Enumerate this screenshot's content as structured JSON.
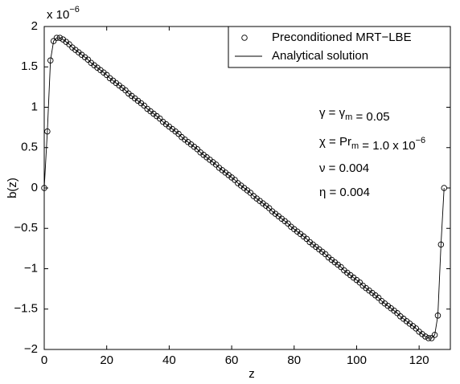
{
  "chart_data": {
    "type": "line",
    "xlabel": "z",
    "ylabel": "b(z)",
    "y_multiplier": [
      {
        "t": "x 10"
      },
      {
        "sup": "−6"
      }
    ],
    "xlim": [
      0,
      130
    ],
    "xticks": [
      0,
      20,
      40,
      60,
      80,
      100,
      120
    ],
    "ylim": [
      -2,
      2
    ],
    "yticks": [
      {
        "value": -2,
        "label": "−2"
      },
      {
        "value": -1.5,
        "label": "−1.5"
      },
      {
        "value": -1,
        "label": "−1"
      },
      {
        "value": -0.5,
        "label": "−0.5"
      },
      0,
      0.5,
      1,
      1.5,
      2
    ],
    "grid": false,
    "legend": "upper right",
    "x": [
      0,
      1,
      2,
      3,
      4,
      5,
      6,
      7,
      8,
      9,
      10,
      11,
      12,
      13,
      14,
      15,
      16,
      17,
      18,
      19,
      20,
      21,
      22,
      23,
      24,
      25,
      26,
      27,
      28,
      29,
      30,
      31,
      32,
      33,
      34,
      35,
      36,
      37,
      38,
      39,
      40,
      41,
      42,
      43,
      44,
      45,
      46,
      47,
      48,
      49,
      50,
      51,
      52,
      53,
      54,
      55,
      56,
      57,
      58,
      59,
      60,
      61,
      62,
      63,
      64,
      65,
      66,
      67,
      68,
      69,
      70,
      71,
      72,
      73,
      74,
      75,
      76,
      77,
      78,
      79,
      80,
      81,
      82,
      83,
      84,
      85,
      86,
      87,
      88,
      89,
      90,
      91,
      92,
      93,
      94,
      95,
      96,
      97,
      98,
      99,
      100,
      101,
      102,
      103,
      104,
      105,
      106,
      107,
      108,
      109,
      110,
      111,
      112,
      113,
      114,
      115,
      116,
      117,
      118,
      119,
      120,
      121,
      122,
      123,
      124,
      125,
      126,
      127,
      128
    ],
    "series": [
      {
        "name": "Preconditioned MRT−LBE",
        "color": "#000000",
        "marker": "circle",
        "values": [
          0,
          0.7,
          1.58,
          1.82,
          1.86,
          1.86,
          1.84,
          1.81,
          1.78,
          1.74,
          1.71,
          1.68,
          1.65,
          1.62,
          1.59,
          1.55,
          1.52,
          1.49,
          1.46,
          1.43,
          1.4,
          1.36,
          1.33,
          1.3,
          1.27,
          1.24,
          1.21,
          1.17,
          1.14,
          1.11,
          1.08,
          1.05,
          1.02,
          0.98,
          0.95,
          0.92,
          0.89,
          0.86,
          0.82,
          0.79,
          0.76,
          0.73,
          0.7,
          0.67,
          0.63,
          0.6,
          0.57,
          0.54,
          0.51,
          0.48,
          0.44,
          0.41,
          0.38,
          0.35,
          0.32,
          0.29,
          0.25,
          0.22,
          0.19,
          0.16,
          0.13,
          0.1,
          0.06,
          0.03,
          0,
          -0.03,
          -0.06,
          -0.1,
          -0.13,
          -0.16,
          -0.19,
          -0.22,
          -0.25,
          -0.29,
          -0.32,
          -0.35,
          -0.38,
          -0.41,
          -0.44,
          -0.48,
          -0.51,
          -0.54,
          -0.57,
          -0.6,
          -0.63,
          -0.67,
          -0.7,
          -0.73,
          -0.76,
          -0.79,
          -0.82,
          -0.86,
          -0.89,
          -0.92,
          -0.95,
          -0.98,
          -1.02,
          -1.05,
          -1.08,
          -1.11,
          -1.14,
          -1.17,
          -1.21,
          -1.24,
          -1.27,
          -1.3,
          -1.33,
          -1.36,
          -1.4,
          -1.43,
          -1.46,
          -1.49,
          -1.52,
          -1.55,
          -1.59,
          -1.62,
          -1.65,
          -1.68,
          -1.71,
          -1.74,
          -1.78,
          -1.81,
          -1.84,
          -1.86,
          -1.86,
          -1.82,
          -1.58,
          -0.7,
          0
        ]
      },
      {
        "name": "Analytical solution",
        "color": "#000000",
        "marker": "none",
        "values": [
          0,
          0.7,
          1.58,
          1.82,
          1.86,
          1.86,
          1.84,
          1.81,
          1.78,
          1.74,
          1.71,
          1.68,
          1.65,
          1.62,
          1.59,
          1.55,
          1.52,
          1.49,
          1.46,
          1.43,
          1.4,
          1.36,
          1.33,
          1.3,
          1.27,
          1.24,
          1.21,
          1.17,
          1.14,
          1.11,
          1.08,
          1.05,
          1.02,
          0.98,
          0.95,
          0.92,
          0.89,
          0.86,
          0.82,
          0.79,
          0.76,
          0.73,
          0.7,
          0.67,
          0.63,
          0.6,
          0.57,
          0.54,
          0.51,
          0.48,
          0.44,
          0.41,
          0.38,
          0.35,
          0.32,
          0.29,
          0.25,
          0.22,
          0.19,
          0.16,
          0.13,
          0.1,
          0.06,
          0.03,
          0,
          -0.03,
          -0.06,
          -0.1,
          -0.13,
          -0.16,
          -0.19,
          -0.22,
          -0.25,
          -0.29,
          -0.32,
          -0.35,
          -0.38,
          -0.41,
          -0.44,
          -0.48,
          -0.51,
          -0.54,
          -0.57,
          -0.6,
          -0.63,
          -0.67,
          -0.7,
          -0.73,
          -0.76,
          -0.79,
          -0.82,
          -0.86,
          -0.89,
          -0.92,
          -0.95,
          -0.98,
          -1.02,
          -1.05,
          -1.08,
          -1.11,
          -1.14,
          -1.17,
          -1.21,
          -1.24,
          -1.27,
          -1.3,
          -1.33,
          -1.36,
          -1.4,
          -1.43,
          -1.46,
          -1.49,
          -1.52,
          -1.55,
          -1.59,
          -1.62,
          -1.65,
          -1.68,
          -1.71,
          -1.74,
          -1.78,
          -1.81,
          -1.84,
          -1.86,
          -1.86,
          -1.82,
          -1.58,
          -0.7,
          0
        ]
      }
    ],
    "annotations": [
      [
        {
          "t": "γ = γ"
        },
        {
          "sub": "m"
        },
        {
          "t": " = 0.05"
        }
      ],
      [
        {
          "t": "χ = Pr"
        },
        {
          "sub": "m"
        },
        {
          "t": " = 1.0 x 10"
        },
        {
          "sup": "−6"
        }
      ],
      [
        {
          "t": "ν = 0.004"
        }
      ],
      [
        {
          "t": "η = 0.004"
        }
      ]
    ]
  }
}
